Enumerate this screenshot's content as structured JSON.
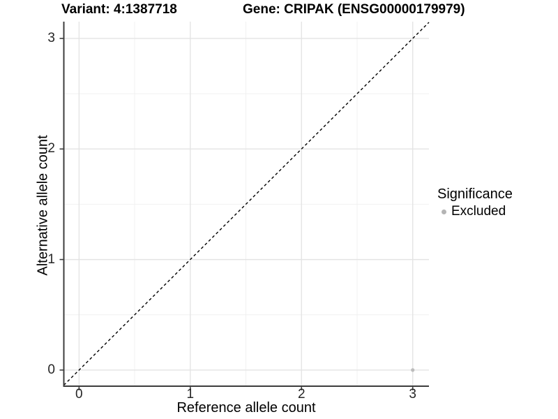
{
  "chart_data": {
    "type": "scatter",
    "title_left": "Variant: 4:1387718",
    "title_right": "Gene: CRIPAK (ENSG00000179979)",
    "xlabel": "Reference allele count",
    "ylabel": "Alternative allele count",
    "xlim": [
      -0.137,
      3.146
    ],
    "ylim": [
      -0.146,
      3.152
    ],
    "xticks": [
      0,
      1,
      2,
      3
    ],
    "yticks": [
      0,
      1,
      2,
      3
    ],
    "xminor": [
      0.5,
      1.5,
      2.5
    ],
    "yminor": [
      0.5,
      1.5,
      2.5
    ],
    "grid": true,
    "identity_line": {
      "slope": 1,
      "intercept": 0,
      "style": "dashed",
      "color": "#000000"
    },
    "points": [
      {
        "x": 3,
        "y": 0,
        "significance": "Excluded"
      }
    ],
    "legend": {
      "position": "right",
      "title": "Significance",
      "entries": [
        {
          "label": "Excluded",
          "color": "#b4b4b4"
        }
      ]
    },
    "style": {
      "axis_color": "#3d3d3d",
      "tick_label_color": "#262626",
      "grid_major_color": "#e4e4e4",
      "grid_minor_color": "#f0f0f0",
      "point_color": "#bcbcbc",
      "point_radius": 2.6,
      "legend_dot_radius": 3.5
    }
  }
}
